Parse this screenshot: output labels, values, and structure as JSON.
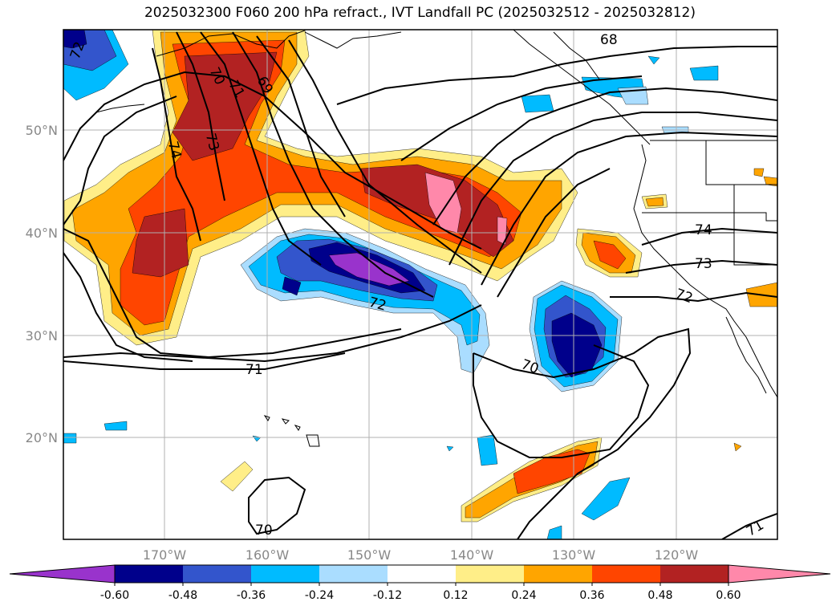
{
  "title": "2025032300 F060 200 hPa refract., IVT Landfall PC (2025032512 - 2025032812)",
  "lat_labels": [
    "50°N",
    "40°N",
    "30°N",
    "20°N"
  ],
  "lon_labels": [
    "170°W",
    "160°W",
    "150°W",
    "140°W",
    "130°W",
    "120°W"
  ],
  "colorbar": {
    "labels": [
      "-0.60",
      "-0.48",
      "-0.36",
      "-0.24",
      "-0.12",
      "0.12",
      "0.24",
      "0.36",
      "0.48",
      "0.60"
    ],
    "colors": [
      "#9933cc",
      "#00008b",
      "#3355cc",
      "#00bbff",
      "#aaddff",
      "#ffffff",
      "#ffee88",
      "#ffa500",
      "#ff4500",
      "#b22222",
      "#ff88aa"
    ]
  },
  "contour_labels": [
    "72",
    "71",
    "70",
    "69",
    "74",
    "73",
    "72",
    "71",
    "70",
    "68",
    "74",
    "73",
    "72",
    "70",
    "71"
  ]
}
